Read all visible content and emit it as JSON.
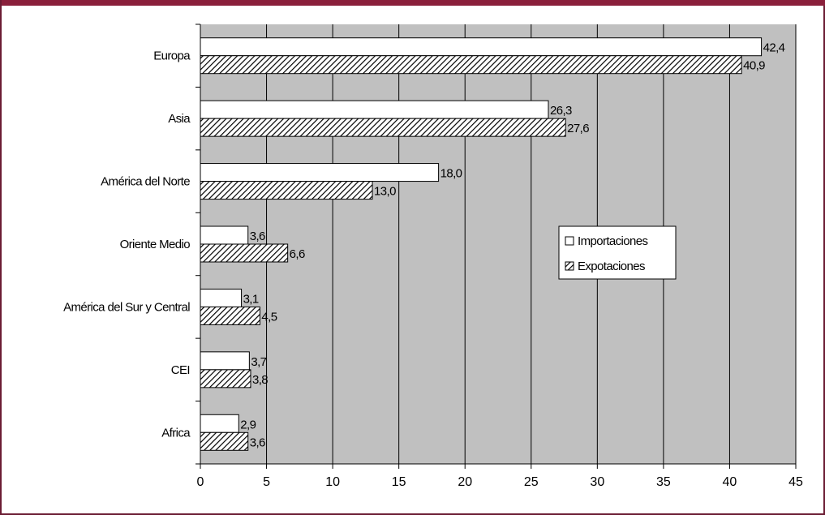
{
  "colors": {
    "frame": "#6b1c33",
    "top_bar": "#8a1f3b",
    "plot_background": "#c0c0c0",
    "importaciones_fill": "#ffffff",
    "expotaciones_fill": "hatched"
  },
  "chart_data": {
    "type": "bar",
    "orientation": "horizontal",
    "categories": [
      "Europa",
      "Asia",
      "América del Norte",
      "Oriente Medio",
      "América del Sur y Central",
      "CEI",
      "Africa"
    ],
    "series": [
      {
        "name": "Importaciones",
        "values": [
          42.4,
          26.3,
          18.0,
          3.6,
          3.1,
          3.7,
          2.9
        ],
        "labels": [
          "42,4",
          "26,3",
          "18,0",
          "3,6",
          "3,1",
          "3,7",
          "2,9"
        ]
      },
      {
        "name": "Expotaciones",
        "values": [
          40.9,
          27.6,
          13.0,
          6.6,
          4.5,
          3.8,
          3.6
        ],
        "labels": [
          "40,9",
          "27,6",
          "13,0",
          "6,6",
          "4,5",
          "3,8",
          "3,6"
        ]
      }
    ],
    "x_ticks": [
      "0",
      "5",
      "10",
      "15",
      "20",
      "25",
      "30",
      "35",
      "40",
      "45"
    ],
    "xlim": [
      0,
      45
    ],
    "grid": "vertical",
    "legend": "right-center"
  }
}
